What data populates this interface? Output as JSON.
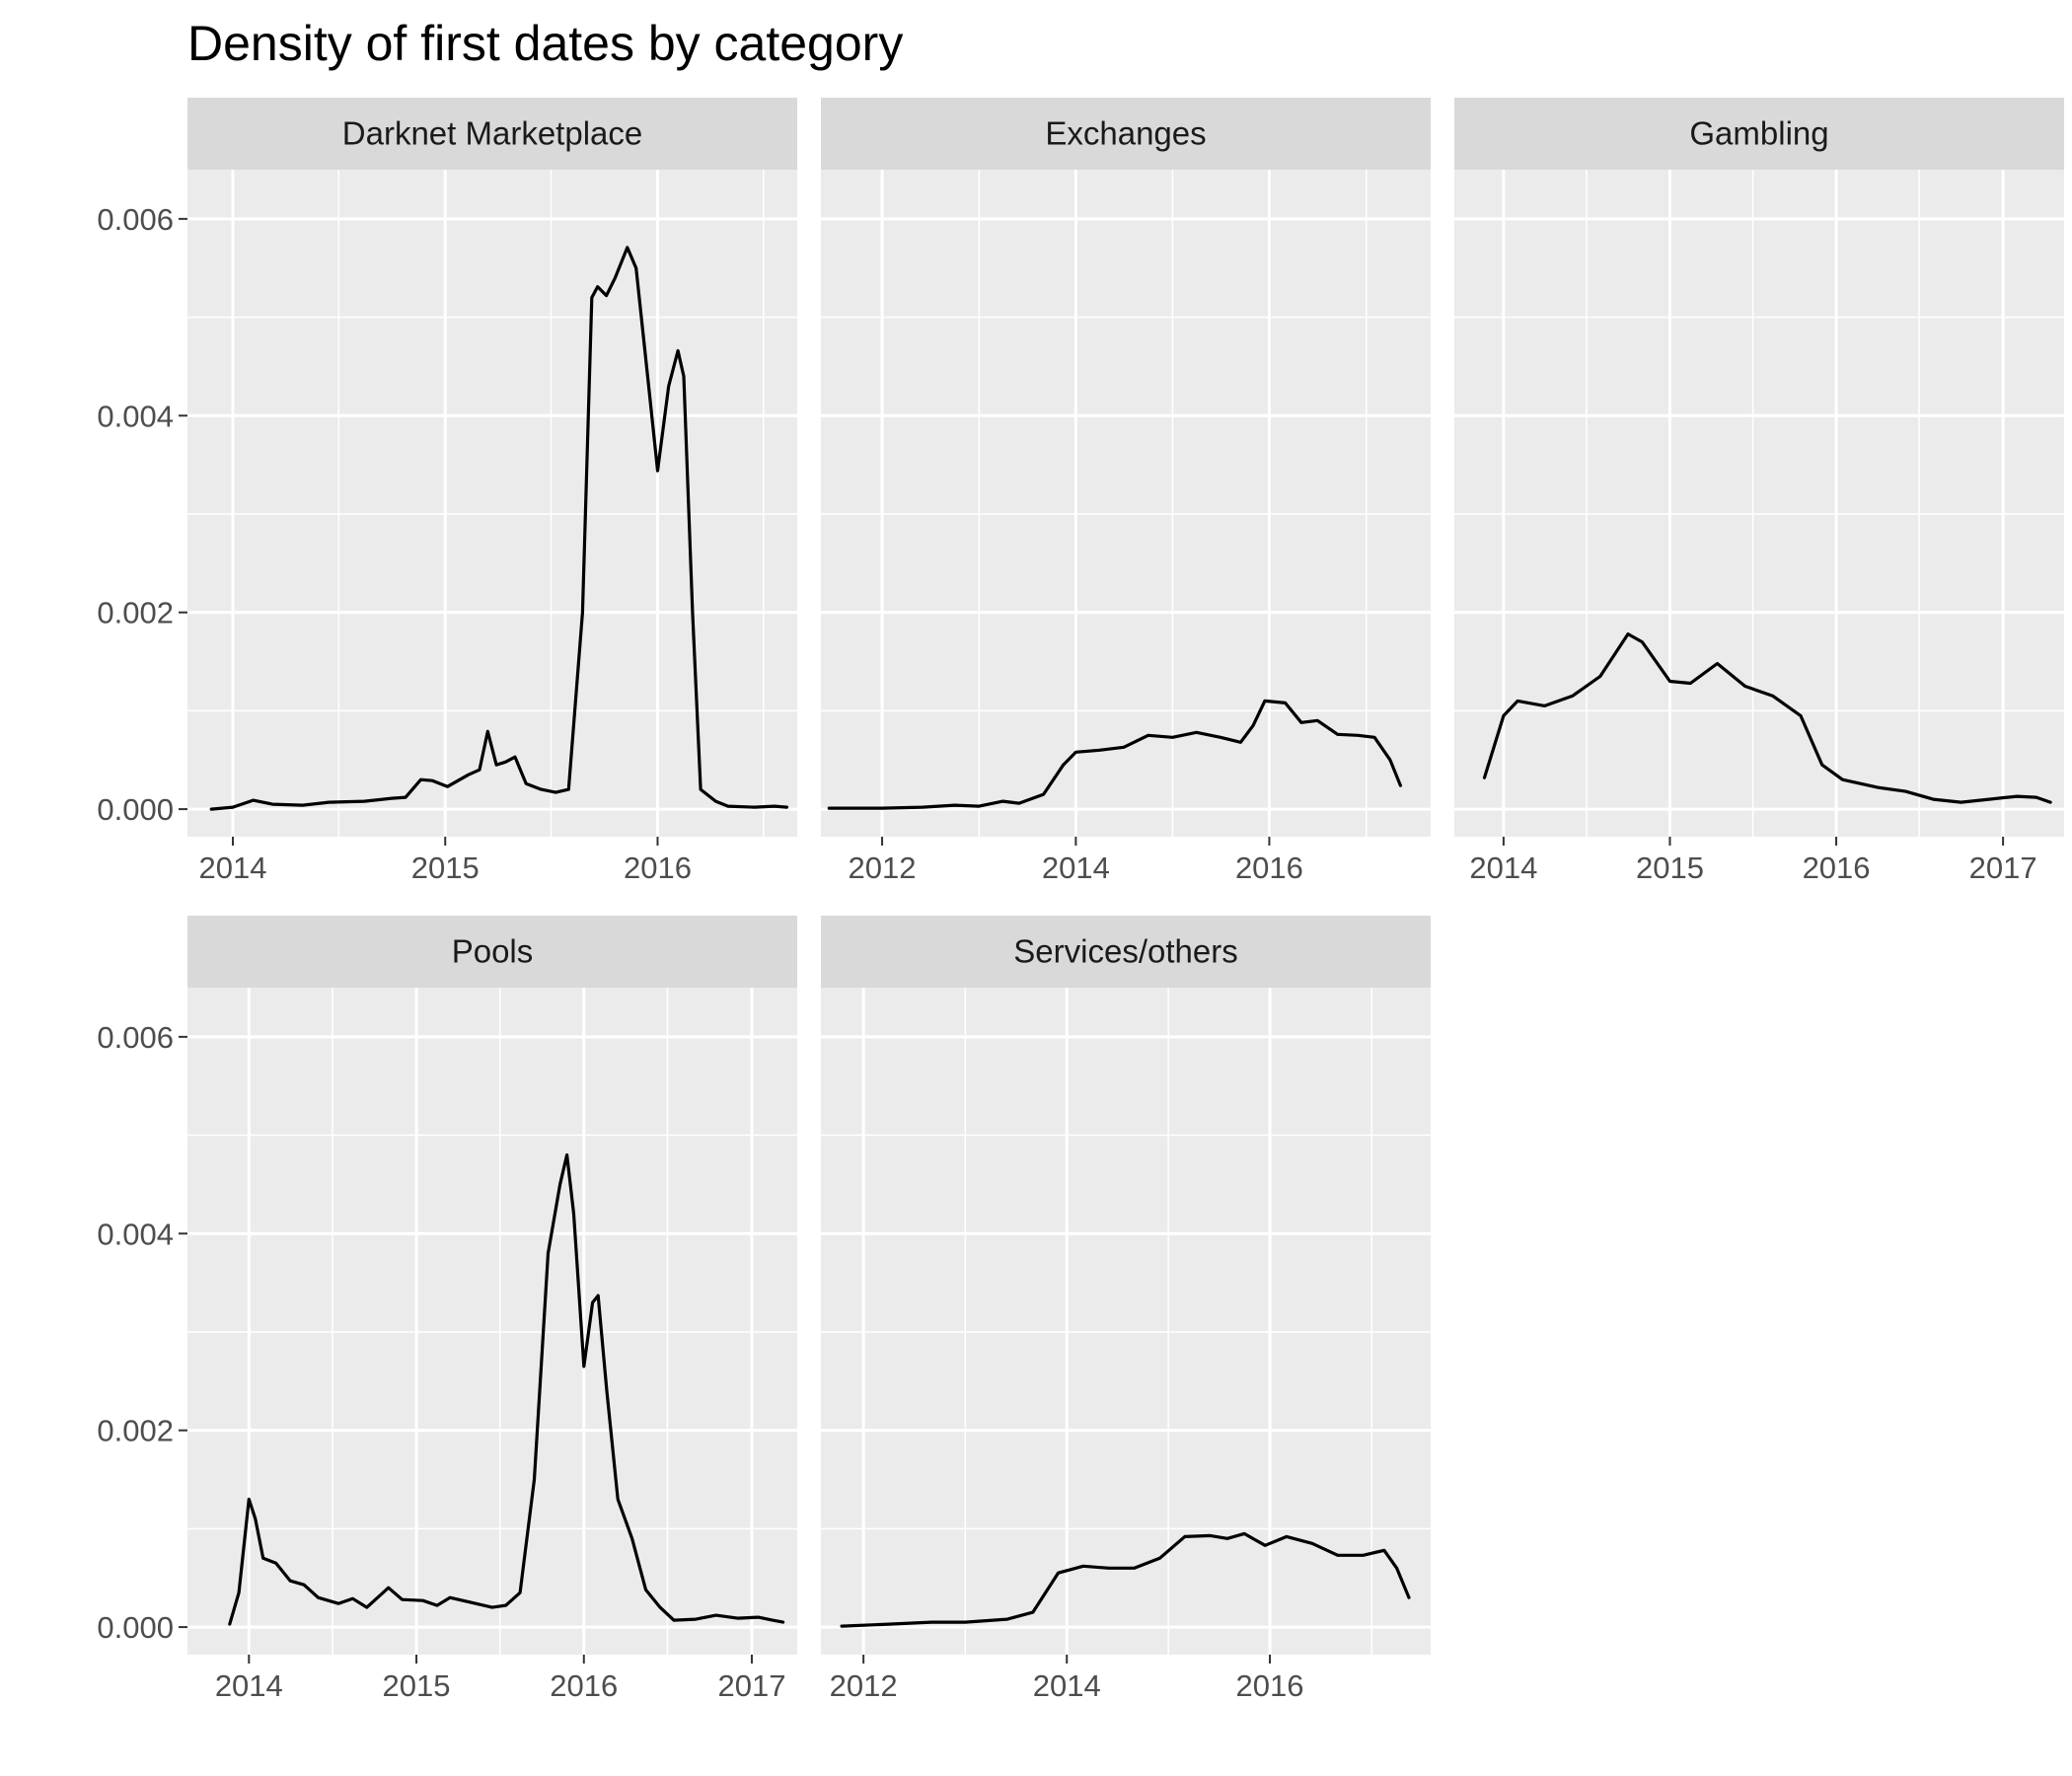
{
  "chart_data": {
    "type": "line",
    "title": "Density of first dates by category",
    "ylabel": "",
    "xlabel": "",
    "ylim": [
      -0.00028,
      0.0065
    ],
    "y_ticks": [
      0,
      0.002,
      0.004,
      0.006
    ],
    "y_tick_labels": [
      "0.000",
      "0.002",
      "0.004",
      "0.006"
    ],
    "grid": true,
    "panels": [
      {
        "name": "Darknet Marketplace",
        "xlim": [
          "2013-10-15",
          "2016-08-28"
        ],
        "x_ticks": [
          "2014-01-01",
          "2015-01-01",
          "2016-01-01"
        ],
        "x_tick_labels": [
          "2014",
          "2015",
          "2016"
        ],
        "x_minor": [
          "2014-07-02",
          "2015-07-02",
          "2016-07-01"
        ],
        "points": [
          [
            "2013-11-25",
            0.0
          ],
          [
            "2014-01-01",
            2e-05
          ],
          [
            "2014-02-05",
            9e-05
          ],
          [
            "2014-03-10",
            5e-05
          ],
          [
            "2014-05-01",
            4e-05
          ],
          [
            "2014-06-15",
            7e-05
          ],
          [
            "2014-08-15",
            8e-05
          ],
          [
            "2014-10-01",
            0.00011
          ],
          [
            "2014-10-25",
            0.00012
          ],
          [
            "2014-11-20",
            0.0003
          ],
          [
            "2014-12-10",
            0.00029
          ],
          [
            "2015-01-05",
            0.00023
          ],
          [
            "2015-02-10",
            0.00035
          ],
          [
            "2015-03-01",
            0.0004
          ],
          [
            "2015-03-15",
            0.00079
          ],
          [
            "2015-03-30",
            0.00045
          ],
          [
            "2015-04-15",
            0.00048
          ],
          [
            "2015-05-01",
            0.00053
          ],
          [
            "2015-05-20",
            0.00026
          ],
          [
            "2015-06-15",
            0.0002
          ],
          [
            "2015-07-10",
            0.00017
          ],
          [
            "2015-08-01",
            0.0002
          ],
          [
            "2015-08-25",
            0.002
          ],
          [
            "2015-09-10",
            0.0052
          ],
          [
            "2015-09-20",
            0.00531
          ],
          [
            "2015-10-05",
            0.00522
          ],
          [
            "2015-10-20",
            0.0054
          ],
          [
            "2015-11-10",
            0.00571
          ],
          [
            "2015-11-25",
            0.0055
          ],
          [
            "2015-12-15",
            0.0044
          ],
          [
            "2016-01-01",
            0.00344
          ],
          [
            "2016-01-20",
            0.0043
          ],
          [
            "2016-02-05",
            0.00466
          ],
          [
            "2016-02-15",
            0.0044
          ],
          [
            "2016-03-01",
            0.002
          ],
          [
            "2016-03-15",
            0.0002
          ],
          [
            "2016-04-10",
            8e-05
          ],
          [
            "2016-05-01",
            3e-05
          ],
          [
            "2016-06-15",
            2e-05
          ],
          [
            "2016-07-20",
            3e-05
          ],
          [
            "2016-08-10",
            2e-05
          ]
        ]
      },
      {
        "name": "Exchanges",
        "xlim": [
          "2011-05-15",
          "2017-09-01"
        ],
        "x_ticks": [
          "2012-01-01",
          "2014-01-01",
          "2016-01-01"
        ],
        "x_tick_labels": [
          "2012",
          "2014",
          "2016"
        ],
        "x_minor": [
          "2013-01-01",
          "2015-01-01",
          "2017-01-01"
        ],
        "points": [
          [
            "2011-06-15",
            1e-05
          ],
          [
            "2012-01-01",
            1e-05
          ],
          [
            "2012-06-01",
            2e-05
          ],
          [
            "2012-10-01",
            4e-05
          ],
          [
            "2013-01-01",
            3e-05
          ],
          [
            "2013-04-01",
            8e-05
          ],
          [
            "2013-06-01",
            6e-05
          ],
          [
            "2013-09-01",
            0.00015
          ],
          [
            "2013-11-15",
            0.00045
          ],
          [
            "2014-01-01",
            0.00058
          ],
          [
            "2014-04-01",
            0.0006
          ],
          [
            "2014-07-01",
            0.00063
          ],
          [
            "2014-10-01",
            0.00075
          ],
          [
            "2015-01-01",
            0.00073
          ],
          [
            "2015-04-01",
            0.00078
          ],
          [
            "2015-07-01",
            0.00073
          ],
          [
            "2015-09-15",
            0.00068
          ],
          [
            "2015-11-01",
            0.00085
          ],
          [
            "2015-12-15",
            0.0011
          ],
          [
            "2016-03-01",
            0.00108
          ],
          [
            "2016-05-01",
            0.00088
          ],
          [
            "2016-07-01",
            0.0009
          ],
          [
            "2016-09-15",
            0.00076
          ],
          [
            "2016-12-01",
            0.00075
          ],
          [
            "2017-02-01",
            0.00073
          ],
          [
            "2017-04-01",
            0.0005
          ],
          [
            "2017-05-10",
            0.00024
          ]
        ]
      },
      {
        "name": "Gambling",
        "xlim": [
          "2013-09-15",
          "2017-05-15"
        ],
        "x_ticks": [
          "2014-01-01",
          "2015-01-01",
          "2016-01-01",
          "2017-01-01"
        ],
        "x_tick_labels": [
          "2014",
          "2015",
          "2016",
          "2017"
        ],
        "x_minor": [
          "2014-07-02",
          "2015-07-02",
          "2016-07-01"
        ],
        "points": [
          [
            "2013-11-20",
            0.00032
          ],
          [
            "2014-01-01",
            0.00095
          ],
          [
            "2014-02-01",
            0.0011
          ],
          [
            "2014-04-01",
            0.00105
          ],
          [
            "2014-06-01",
            0.00115
          ],
          [
            "2014-08-01",
            0.00135
          ],
          [
            "2014-10-01",
            0.00178
          ],
          [
            "2014-11-01",
            0.0017
          ],
          [
            "2015-01-01",
            0.0013
          ],
          [
            "2015-02-15",
            0.00128
          ],
          [
            "2015-04-15",
            0.00148
          ],
          [
            "2015-06-15",
            0.00125
          ],
          [
            "2015-08-15",
            0.00115
          ],
          [
            "2015-10-15",
            0.00095
          ],
          [
            "2015-12-01",
            0.00045
          ],
          [
            "2016-01-15",
            0.0003
          ],
          [
            "2016-04-01",
            0.00022
          ],
          [
            "2016-06-01",
            0.00018
          ],
          [
            "2016-08-01",
            0.0001
          ],
          [
            "2016-10-01",
            7e-05
          ],
          [
            "2016-12-01",
            0.0001
          ],
          [
            "2017-02-01",
            0.00013
          ],
          [
            "2017-03-15",
            0.00012
          ],
          [
            "2017-04-15",
            7e-05
          ]
        ]
      },
      {
        "name": "Pools",
        "xlim": [
          "2013-08-20",
          "2017-04-10"
        ],
        "x_ticks": [
          "2014-01-01",
          "2015-01-01",
          "2016-01-01",
          "2017-01-01"
        ],
        "x_tick_labels": [
          "2014",
          "2015",
          "2016",
          "2017"
        ],
        "x_minor": [
          "2014-07-02",
          "2015-07-02",
          "2016-07-01"
        ],
        "points": [
          [
            "2013-11-20",
            3e-05
          ],
          [
            "2013-12-10",
            0.00035
          ],
          [
            "2014-01-01",
            0.0013
          ],
          [
            "2014-01-15",
            0.0011
          ],
          [
            "2014-02-01",
            0.0007
          ],
          [
            "2014-03-01",
            0.00065
          ],
          [
            "2014-04-01",
            0.00047
          ],
          [
            "2014-05-01",
            0.00043
          ],
          [
            "2014-06-01",
            0.0003
          ],
          [
            "2014-07-15",
            0.00024
          ],
          [
            "2014-08-15",
            0.00029
          ],
          [
            "2014-09-15",
            0.0002
          ],
          [
            "2014-11-01",
            0.0004
          ],
          [
            "2014-12-01",
            0.00028
          ],
          [
            "2015-01-15",
            0.00027
          ],
          [
            "2015-02-15",
            0.00022
          ],
          [
            "2015-03-15",
            0.0003
          ],
          [
            "2015-05-01",
            0.00025
          ],
          [
            "2015-06-15",
            0.0002
          ],
          [
            "2015-07-15",
            0.00022
          ],
          [
            "2015-08-15",
            0.00035
          ],
          [
            "2015-09-15",
            0.0015
          ],
          [
            "2015-10-15",
            0.0038
          ],
          [
            "2015-11-10",
            0.0045
          ],
          [
            "2015-11-25",
            0.0048
          ],
          [
            "2015-12-10",
            0.0042
          ],
          [
            "2016-01-01",
            0.00265
          ],
          [
            "2016-01-20",
            0.0033
          ],
          [
            "2016-02-01",
            0.00337
          ],
          [
            "2016-02-20",
            0.0024
          ],
          [
            "2016-03-15",
            0.0013
          ],
          [
            "2016-04-15",
            0.0009
          ],
          [
            "2016-05-15",
            0.00038
          ],
          [
            "2016-06-15",
            0.0002
          ],
          [
            "2016-07-15",
            7e-05
          ],
          [
            "2016-09-01",
            8e-05
          ],
          [
            "2016-10-15",
            0.00012
          ],
          [
            "2016-12-01",
            9e-05
          ],
          [
            "2017-01-15",
            0.0001
          ],
          [
            "2017-02-15",
            7e-05
          ],
          [
            "2017-03-10",
            5e-05
          ]
        ]
      },
      {
        "name": "Services/others",
        "xlim": [
          "2011-08-01",
          "2017-08-01"
        ],
        "x_ticks": [
          "2012-01-01",
          "2014-01-01",
          "2016-01-01"
        ],
        "x_tick_labels": [
          "2012",
          "2014",
          "2016"
        ],
        "x_minor": [
          "2013-01-01",
          "2015-01-01",
          "2017-01-01"
        ],
        "points": [
          [
            "2011-10-15",
            1e-05
          ],
          [
            "2012-04-01",
            3e-05
          ],
          [
            "2012-09-01",
            5e-05
          ],
          [
            "2013-01-01",
            5e-05
          ],
          [
            "2013-06-01",
            8e-05
          ],
          [
            "2013-09-01",
            0.00015
          ],
          [
            "2013-12-01",
            0.00055
          ],
          [
            "2014-03-01",
            0.00062
          ],
          [
            "2014-06-01",
            0.0006
          ],
          [
            "2014-09-01",
            0.0006
          ],
          [
            "2014-12-01",
            0.0007
          ],
          [
            "2015-03-01",
            0.00092
          ],
          [
            "2015-06-01",
            0.00093
          ],
          [
            "2015-08-01",
            0.0009
          ],
          [
            "2015-10-01",
            0.00095
          ],
          [
            "2015-12-15",
            0.00083
          ],
          [
            "2016-03-01",
            0.00092
          ],
          [
            "2016-06-01",
            0.00085
          ],
          [
            "2016-09-01",
            0.00073
          ],
          [
            "2016-12-01",
            0.00073
          ],
          [
            "2017-02-15",
            0.00078
          ],
          [
            "2017-04-01",
            0.0006
          ],
          [
            "2017-05-15",
            0.0003
          ]
        ]
      }
    ]
  },
  "colors": {
    "panel_background": "#ebebeb",
    "strip_background": "#d9d9d9",
    "grid": "#ffffff",
    "line": "#000000",
    "tick": "#333333"
  }
}
